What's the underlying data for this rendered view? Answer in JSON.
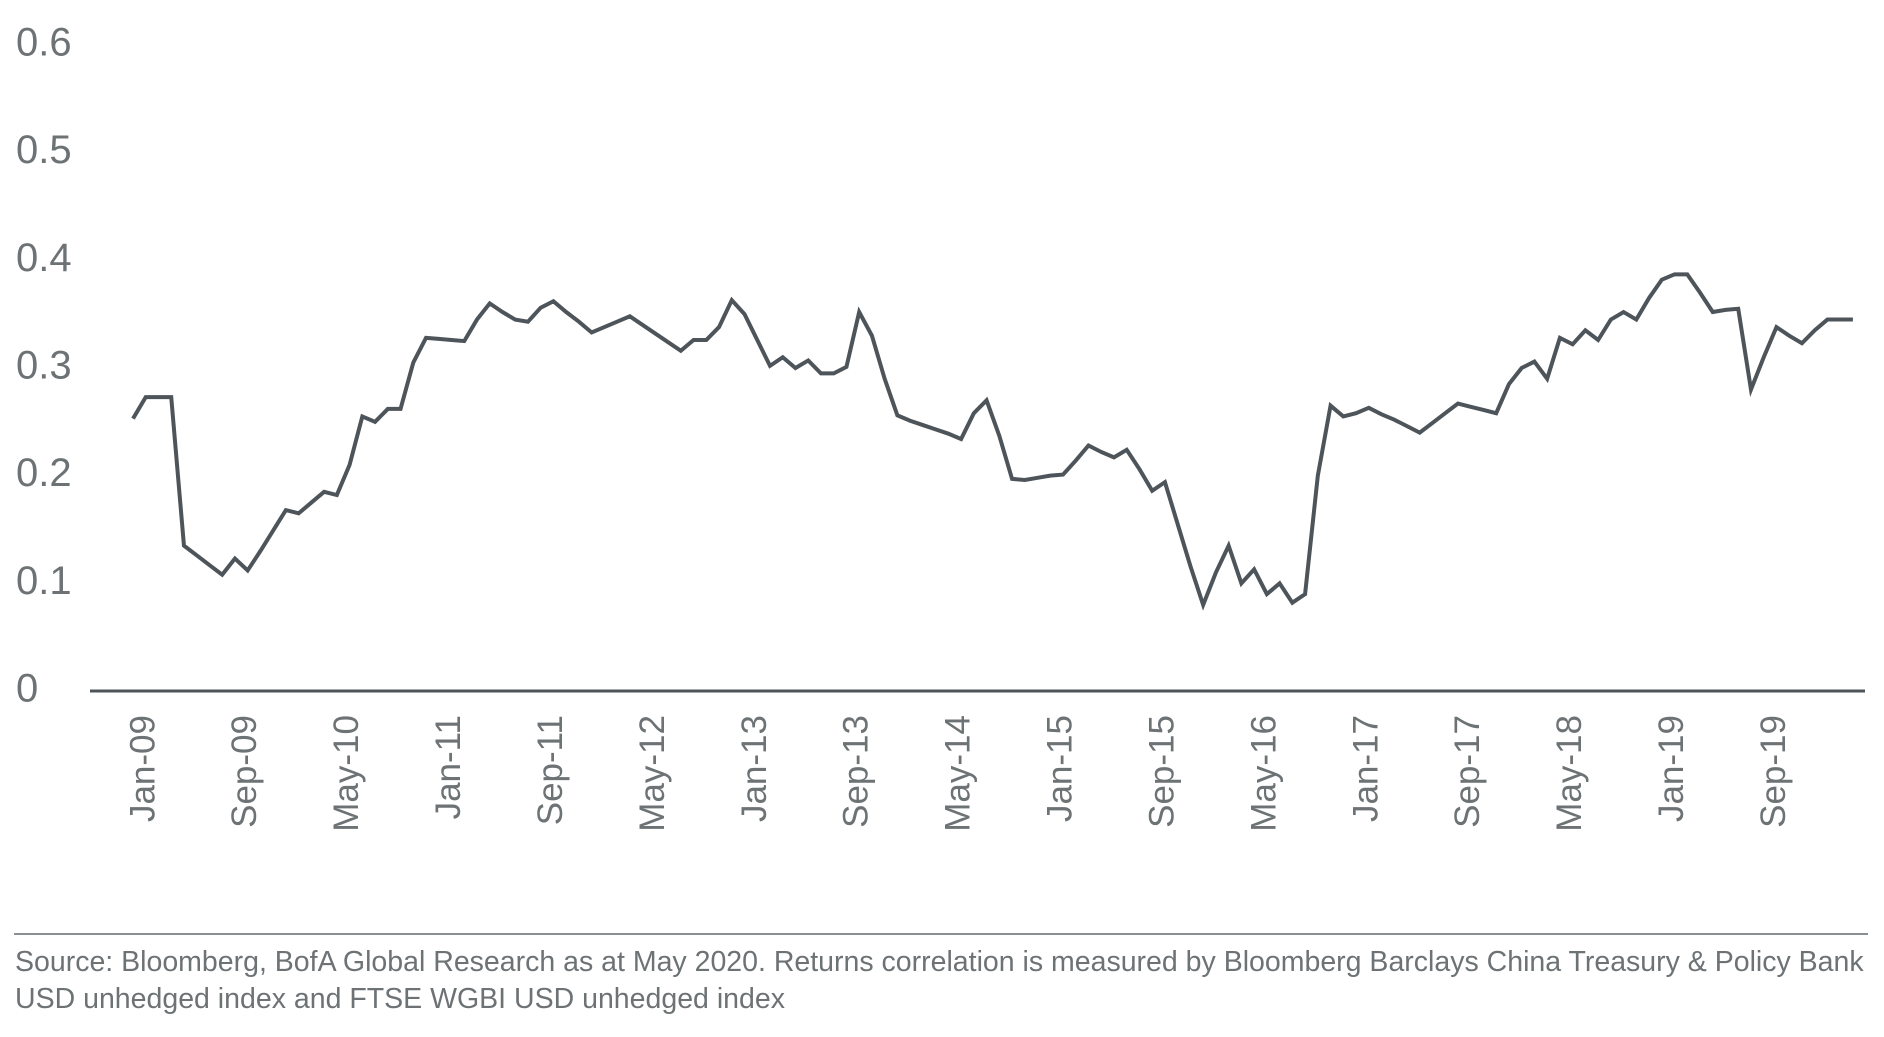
{
  "chart_data": {
    "type": "line",
    "categories": [
      "Jan-09",
      null,
      null,
      null,
      null,
      null,
      null,
      null,
      "Sep-09",
      null,
      null,
      null,
      null,
      null,
      null,
      null,
      "May-10",
      null,
      null,
      null,
      null,
      null,
      null,
      null,
      "Jan-11",
      null,
      null,
      null,
      null,
      null,
      null,
      null,
      "Sep-11",
      null,
      null,
      null,
      null,
      null,
      null,
      null,
      "May-12",
      null,
      null,
      null,
      null,
      null,
      null,
      null,
      "Jan-13",
      null,
      null,
      null,
      null,
      null,
      null,
      null,
      "Sep-13",
      null,
      null,
      null,
      null,
      null,
      null,
      null,
      "May-14",
      null,
      null,
      null,
      null,
      null,
      null,
      null,
      "Jan-15",
      null,
      null,
      null,
      null,
      null,
      null,
      null,
      "Sep-15",
      null,
      null,
      null,
      null,
      null,
      null,
      null,
      "May-16",
      null,
      null,
      null,
      null,
      null,
      null,
      null,
      "Jan-17",
      null,
      null,
      null,
      null,
      null,
      null,
      null,
      "Sep-17",
      null,
      null,
      null,
      null,
      null,
      null,
      null,
      "May-18",
      null,
      null,
      null,
      null,
      null,
      null,
      null,
      "Jan-19",
      null,
      null,
      null,
      null,
      null,
      null,
      null,
      "Sep-19",
      null,
      null,
      null,
      null,
      null,
      null,
      null
    ],
    "series": [
      {
        "color": "#4d545a",
        "values": [
          0.253,
          0.273,
          0.273,
          0.273,
          0.135,
          0.126,
          0.117,
          0.108,
          0.123,
          0.112,
          0.13,
          0.149,
          0.168,
          0.165,
          0.175,
          0.185,
          0.182,
          0.21,
          0.255,
          0.25,
          0.262,
          0.262,
          0.305,
          0.328,
          0.327,
          0.326,
          0.325,
          0.345,
          0.36,
          0.352,
          0.345,
          0.343,
          0.356,
          0.362,
          0.352,
          0.343,
          0.333,
          0.338,
          0.343,
          0.348,
          0.34,
          0.332,
          0.324,
          0.316,
          0.326,
          0.326,
          0.338,
          0.363,
          0.35,
          0.326,
          0.302,
          0.31,
          0.3,
          0.307,
          0.295,
          0.295,
          0.301,
          0.352,
          0.33,
          0.29,
          0.256,
          0.251,
          0.247,
          0.243,
          0.239,
          0.234,
          0.258,
          0.27,
          0.237,
          0.197,
          0.196,
          0.198,
          0.2,
          0.201,
          0.214,
          0.228,
          0.222,
          0.217,
          0.224,
          0.206,
          0.186,
          0.194,
          0.155,
          0.116,
          0.08,
          0.11,
          0.135,
          0.1,
          0.113,
          0.09,
          0.1,
          0.082,
          0.09,
          0.2,
          0.265,
          0.255,
          0.258,
          0.263,
          0.257,
          0.252,
          0.246,
          0.24,
          0.249,
          0.258,
          0.267,
          0.264,
          0.261,
          0.258,
          0.285,
          0.3,
          0.306,
          0.29,
          0.328,
          0.322,
          0.335,
          0.326,
          0.345,
          0.352,
          0.345,
          0.365,
          0.382,
          0.387,
          0.387,
          0.37,
          0.352,
          0.354,
          0.355,
          0.28,
          0.31,
          0.338,
          0.33,
          0.323,
          0.335,
          0.345,
          0.345,
          0.345
        ]
      }
    ],
    "ylim": [
      0,
      0.6
    ],
    "yticks": [
      0,
      0.1,
      0.2,
      0.3,
      0.4,
      0.5,
      0.6
    ],
    "grid": false,
    "source": "Source: Bloomberg, BofA Global Research as at May 2020. Returns correlation is measured by Bloomberg Barclays China Treasury & Policy Bank USD unhedged index and FTSE WGBI USD unhedged index"
  }
}
